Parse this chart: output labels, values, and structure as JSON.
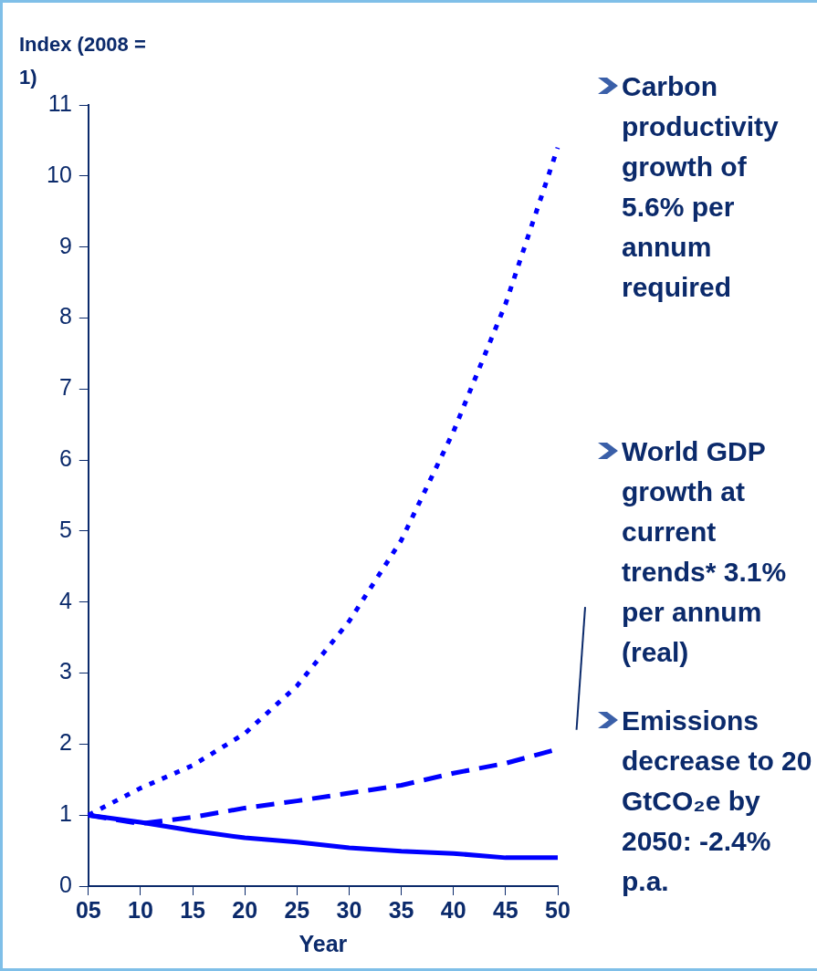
{
  "chart_data": {
    "type": "line",
    "xlabel": "Year",
    "ylabel": "Index (2008 = 1)",
    "categories": [
      "05",
      "10",
      "15",
      "20",
      "25",
      "30",
      "35",
      "40",
      "45",
      "50"
    ],
    "series": [
      {
        "color": "#0000ff",
        "line_style": "dotted",
        "values": [
          1.0,
          1.38,
          1.7,
          2.15,
          2.82,
          3.73,
          4.87,
          6.4,
          8.2,
          10.4
        ]
      },
      {
        "color": "#0000ff",
        "line_style": "dashed",
        "values": [
          1.0,
          0.88,
          0.97,
          1.1,
          1.2,
          1.31,
          1.42,
          1.59,
          1.73,
          1.93
        ]
      },
      {
        "color": "#0000ff",
        "line_style": "solid",
        "values": [
          1.0,
          0.9,
          0.78,
          0.68,
          0.62,
          0.54,
          0.49,
          0.46,
          0.4,
          0.4
        ]
      }
    ],
    "ylim": [
      0,
      11
    ],
    "yticks": [
      0,
      1,
      2,
      3,
      4,
      5,
      6,
      7,
      8,
      9,
      10,
      11
    ],
    "grid": false,
    "legend": false,
    "marker": "none",
    "annotations": [
      "Carbon productivity growth of 5.6% per annum required",
      "World GDP growth at current trends* 3.1% per annum (real)",
      "Emissions decrease to 20 GtCO₂e by 2050: -2.4% p.a."
    ]
  }
}
